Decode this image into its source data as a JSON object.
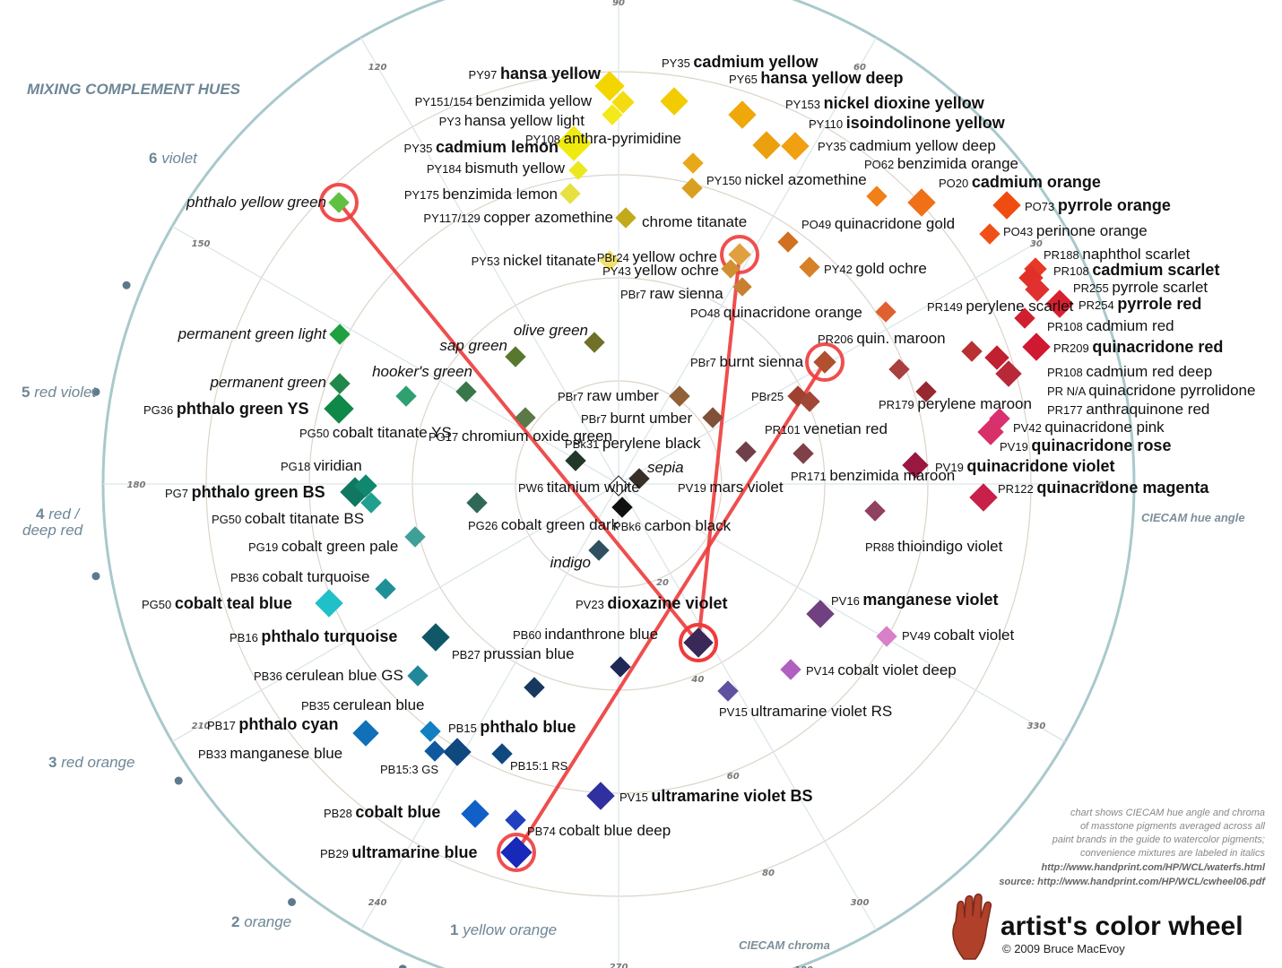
{
  "title": "MIXING COMPLEMENT HUES",
  "outer_hues": [
    {
      "num": "6",
      "name": "violet"
    },
    {
      "num": "5",
      "name": "red violet"
    },
    {
      "num": "4",
      "name": "red /"
    },
    {
      "num": "",
      "name": "deep red"
    },
    {
      "num": "3",
      "name": "red orange"
    },
    {
      "num": "2",
      "name": "orange"
    },
    {
      "num": "1",
      "name": "yellow orange"
    }
  ],
  "hue_ticks": [
    "90",
    "60",
    "30",
    "0",
    "330",
    "300",
    "270",
    "240",
    "210",
    "180",
    "150",
    "120"
  ],
  "chroma_ticks": [
    "20",
    "40",
    "60",
    "80",
    "100"
  ],
  "axis_labels": {
    "hue": "CIECAM hue angle",
    "chroma": "CIECAM chroma"
  },
  "notes": [
    "chart shows CIECAM hue angle and chroma",
    "of masstone pigments averaged across all",
    "paint brands in the guide to watercolor pigments;",
    "convenience mixtures are labeled in italics",
    "http://www.handprint.com/HP/WCL/waterfs.html",
    "source: http://www.handprint.com/HP/WCL/cwheel06.pdf"
  ],
  "brand": {
    "title": "artist's color wheel",
    "copyright": "© 2009 Bruce MacEvoy"
  },
  "chart_data": {
    "type": "scatter",
    "coordinate_system": "polar",
    "angle_axis": "CIECAM hue angle",
    "radius_axis": "CIECAM chroma",
    "radius_range": [
      0,
      100
    ],
    "points": [
      {
        "code": "PY97",
        "name": "hansa yellow",
        "color": "#f3d600",
        "bold": true
      },
      {
        "code": "PY151/154",
        "name": "benzimida yellow",
        "color": "#f5dc10"
      },
      {
        "code": "PY3",
        "name": "hansa yellow light",
        "color": "#f2ea1a"
      },
      {
        "code": "PY35",
        "name": "cadmium lemon",
        "color": "#f0ea10",
        "bold": true
      },
      {
        "code": "PY184",
        "name": "bismuth yellow",
        "color": "#ece820"
      },
      {
        "code": "PY175",
        "name": "benzimida lemon",
        "color": "#e8e040"
      },
      {
        "code": "PY117/129",
        "name": "copper azomethine",
        "color": "#c3aa1a"
      },
      {
        "code": "PY53",
        "name": "nickel titanate",
        "color": "#f0e070"
      },
      {
        "code": "PY35",
        "name": "cadmium yellow",
        "color": "#f2cc00",
        "bold": true
      },
      {
        "code": "PY65",
        "name": "hansa yellow deep",
        "color": "#eea80a",
        "bold": true
      },
      {
        "code": "PY153",
        "name": "nickel dioxine yellow",
        "color": "#eba010",
        "bold": true
      },
      {
        "code": "PY110",
        "name": "isoindolinone yellow",
        "color": "#f0a010",
        "bold": true
      },
      {
        "code": "PY35",
        "name": "cadmium yellow deep",
        "color": "#f09810"
      },
      {
        "code": "PY108",
        "name": "anthra-pyrimidine",
        "color": "#e8a818"
      },
      {
        "code": "PY150",
        "name": "nickel azomethine",
        "color": "#d9a020"
      },
      {
        "code": "",
        "name": "chrome titanate",
        "color": "#d4a020"
      },
      {
        "code": "PO62",
        "name": "benzimida orange",
        "color": "#f08018"
      },
      {
        "code": "PO20",
        "name": "cadmium orange",
        "color": "#f07018",
        "bold": true
      },
      {
        "code": "PO73",
        "name": "pyrrole orange",
        "color": "#f04c10",
        "bold": true
      },
      {
        "code": "PO43",
        "name": "perinone orange",
        "color": "#f05018"
      },
      {
        "code": "PBr24",
        "name": "yellow ochre",
        "color": "#e0a040"
      },
      {
        "code": "PY43",
        "name": "yellow ochre",
        "color": "#d09030"
      },
      {
        "code": "PO49",
        "name": "quinacridone gold",
        "color": "#d07020"
      },
      {
        "code": "PY42",
        "name": "gold ochre",
        "color": "#d88028"
      },
      {
        "code": "PBr7",
        "name": "raw sienna",
        "color": "#c88030"
      },
      {
        "code": "PO48",
        "name": "quinacridone orange",
        "color": "#e06030"
      },
      {
        "code": "PR188",
        "name": "naphthol scarlet",
        "color": "#e83828"
      },
      {
        "code": "PR108",
        "name": "cadmium scarlet",
        "color": "#e03028",
        "bold": true
      },
      {
        "code": "PR255",
        "name": "pyrrole scarlet",
        "color": "#e03030"
      },
      {
        "code": "PR254",
        "name": "pyrrole red",
        "color": "#d82030",
        "bold": true
      },
      {
        "code": "PR108",
        "name": "cadmium red",
        "color": "#d02030"
      },
      {
        "code": "PR209",
        "name": "quinacridone red",
        "color": "#d01830",
        "bold": true
      },
      {
        "code": "PR108",
        "name": "cadmium red deep",
        "color": "#c02030"
      },
      {
        "code": "PR N/A",
        "name": "quinacridone pyrrolidone",
        "color": "#b82838"
      },
      {
        "code": "PR177",
        "name": "anthraquinone red",
        "color": "#b02030"
      },
      {
        "code": "PV42",
        "name": "quinacridone pink",
        "color": "#d83070"
      },
      {
        "code": "PV19",
        "name": "quinacridone rose",
        "color": "#d83068",
        "bold": true
      },
      {
        "code": "PV19",
        "name": "quinacridone violet",
        "color": "#9a1840",
        "bold": true
      },
      {
        "code": "PR122",
        "name": "quinacridone magenta",
        "color": "#c82048",
        "bold": true
      },
      {
        "code": "PR149",
        "name": "perylene scarlet",
        "color": "#b83030"
      },
      {
        "code": "PR206",
        "name": "quin. maroon",
        "color": "#a84040"
      },
      {
        "code": "PR179",
        "name": "perylene maroon",
        "color": "#982830"
      },
      {
        "code": "PBr7",
        "name": "burnt sienna",
        "color": "#b05030"
      },
      {
        "code": "PBr25",
        "name": "",
        "color": "#a04030"
      },
      {
        "code": "PR101",
        "name": "venetian red",
        "color": "#a04838"
      },
      {
        "code": "PR171",
        "name": "benzimida maroon",
        "color": "#804048"
      },
      {
        "code": "PR88",
        "name": "thioindigo violet",
        "color": "#904060"
      },
      {
        "code": "PBr7",
        "name": "raw umber",
        "color": "#906038"
      },
      {
        "code": "PBr7",
        "name": "burnt umber",
        "color": "#805038"
      },
      {
        "code": "PBk31",
        "name": "perylene black",
        "color": "#203828"
      },
      {
        "code": "PV19",
        "name": "mars violet",
        "color": "#704048"
      },
      {
        "code": "PW6",
        "name": "titanium white",
        "color": "#ffffff"
      },
      {
        "code": "PBk6",
        "name": "carbon black",
        "color": "#101010"
      },
      {
        "code": "PG17",
        "name": "chromium oxide green",
        "color": "#5a7848"
      },
      {
        "code": "PG26",
        "name": "cobalt green dark",
        "color": "#306858"
      },
      {
        "code": "PV16",
        "name": "manganese violet",
        "color": "#704080",
        "bold": true
      },
      {
        "code": "PV49",
        "name": "cobalt violet",
        "color": "#d880c8"
      },
      {
        "code": "PV14",
        "name": "cobalt violet deep",
        "color": "#b060c0"
      },
      {
        "code": "PV15",
        "name": "ultramarine violet RS",
        "color": "#6050a0"
      },
      {
        "code": "PV23",
        "name": "dioxazine violet",
        "color": "#3a2858",
        "bold": true
      },
      {
        "code": "PB60",
        "name": "indanthrone blue",
        "color": "#202858"
      },
      {
        "code": "PB27",
        "name": "prussian blue",
        "color": "#183860"
      },
      {
        "code": "PV15",
        "name": "ultramarine violet BS",
        "color": "#3030a0",
        "bold": true
      },
      {
        "code": "PB74",
        "name": "cobalt blue deep",
        "color": "#2040c0"
      },
      {
        "code": "PB29",
        "name": "ultramarine blue",
        "color": "#1828b8",
        "bold": true
      },
      {
        "code": "PB28",
        "name": "cobalt blue",
        "color": "#1060c8",
        "bold": true
      },
      {
        "code": "PB15",
        "name": "phthalo blue",
        "color": "#104880",
        "bold": true
      },
      {
        "code": "PB15:1 RS",
        "name": "",
        "color": "#104880"
      },
      {
        "code": "PB15:3 GS",
        "name": "",
        "color": "#1058a0"
      },
      {
        "code": "PB35",
        "name": "cerulean blue",
        "color": "#1080c0"
      },
      {
        "code": "PB17",
        "name": "phthalo cyan",
        "color": "#1070b8",
        "bold": true
      },
      {
        "code": "PB33",
        "name": "manganese blue",
        "color": "#1890c8"
      },
      {
        "code": "PB36",
        "name": "cerulean blue GS",
        "color": "#208898"
      },
      {
        "code": "PB16",
        "name": "phthalo turquoise",
        "color": "#105868",
        "bold": true
      },
      {
        "code": "PG50",
        "name": "cobalt teal blue",
        "color": "#20c0c8",
        "bold": true
      },
      {
        "code": "PB36",
        "name": "cobalt turquoise",
        "color": "#209098"
      },
      {
        "code": "PG19",
        "name": "cobalt green pale",
        "color": "#40a098"
      },
      {
        "code": "PG50",
        "name": "cobalt titanate BS",
        "color": "#20a090"
      },
      {
        "code": "PG7",
        "name": "phthalo green BS",
        "color": "#107860",
        "bold": true
      },
      {
        "code": "PG18",
        "name": "viridian",
        "color": "#108870"
      },
      {
        "code": "PG36",
        "name": "phthalo green YS",
        "color": "#108848",
        "bold": true
      },
      {
        "code": "PG50",
        "name": "cobalt titanate YS",
        "color": "#30a070"
      },
      {
        "code": "",
        "name": "permanent green light",
        "color": "#20a040",
        "italic": true
      },
      {
        "code": "",
        "name": "permanent green",
        "color": "#208848",
        "italic": true
      },
      {
        "code": "",
        "name": "hooker's green",
        "color": "#387848",
        "italic": true
      },
      {
        "code": "",
        "name": "sap green",
        "color": "#587830",
        "italic": true
      },
      {
        "code": "",
        "name": "olive green",
        "color": "#707028",
        "italic": true
      },
      {
        "code": "",
        "name": "phthalo yellow green",
        "color": "#60c040",
        "italic": true
      },
      {
        "code": "",
        "name": "sepia",
        "color": "#383028",
        "italic": true
      },
      {
        "code": "",
        "name": "indigo",
        "color": "#305060",
        "italic": true
      }
    ],
    "complement_lines": [
      {
        "from": "phthalo yellow green",
        "to": "dioxazine violet"
      },
      {
        "from": "yellow ochre",
        "to": "dioxazine violet"
      },
      {
        "from": "burnt sienna",
        "to": "ultramarine blue"
      }
    ]
  }
}
